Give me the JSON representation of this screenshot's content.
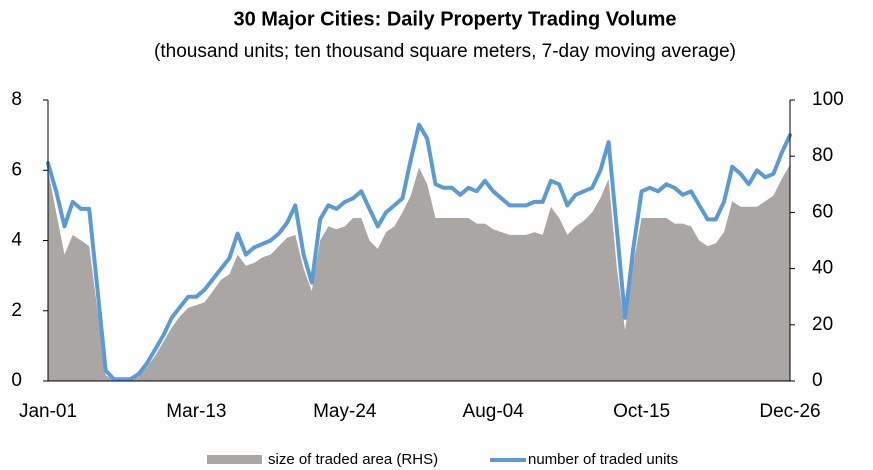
{
  "chart_data": {
    "type": "line",
    "title": "30 Major Cities: Daily Property Trading Volume",
    "subtitle": "(thousand units; ten thousand square meters, 7-day moving average)",
    "categories": [
      "Jan-01",
      null,
      null,
      null,
      null,
      null,
      null,
      null,
      null,
      null,
      null,
      null,
      null,
      null,
      null,
      null,
      null,
      null,
      "Mar-13",
      null,
      null,
      null,
      null,
      null,
      null,
      null,
      null,
      null,
      null,
      null,
      null,
      null,
      null,
      null,
      null,
      null,
      "May-24",
      null,
      null,
      null,
      null,
      null,
      null,
      null,
      null,
      null,
      null,
      null,
      null,
      null,
      null,
      null,
      null,
      null,
      "Aug-04",
      null,
      null,
      null,
      null,
      null,
      null,
      null,
      null,
      null,
      null,
      null,
      null,
      null,
      null,
      null,
      null,
      null,
      "Oct-15",
      null,
      null,
      null,
      null,
      null,
      null,
      null,
      null,
      null,
      null,
      null,
      null,
      null,
      null,
      null,
      null,
      null,
      "Dec-26"
    ],
    "series": [
      {
        "name": "size of traded area (RHS)",
        "type": "area",
        "axis": "y2",
        "color": "#aaa6a4",
        "values": [
          75,
          60,
          45,
          52,
          50,
          48,
          25,
          2,
          0.5,
          0.5,
          0.5,
          1.5,
          5,
          9,
          14,
          19,
          23,
          26,
          27,
          28,
          32,
          36,
          38,
          45,
          41,
          42,
          44,
          45,
          48,
          51,
          52,
          40,
          32,
          50,
          55,
          54,
          55,
          58,
          58,
          50,
          47,
          53,
          55,
          60,
          66,
          76,
          70,
          58,
          58,
          58,
          58,
          58,
          56,
          56,
          54,
          53,
          52,
          52,
          52,
          53,
          52,
          62,
          58,
          52,
          55,
          57,
          60,
          65,
          72,
          40,
          18,
          42,
          58,
          58,
          58,
          58,
          56,
          56,
          55,
          50,
          48,
          49,
          53,
          64,
          62,
          62,
          62,
          64,
          66,
          72,
          77
        ]
      },
      {
        "name": "number of traded units",
        "type": "line",
        "color": "#5b9bd5",
        "values": [
          6.2,
          5.4,
          4.4,
          5.1,
          4.9,
          4.9,
          2.6,
          0.3,
          0.05,
          0.05,
          0.05,
          0.2,
          0.5,
          0.9,
          1.3,
          1.8,
          2.1,
          2.4,
          2.4,
          2.6,
          2.9,
          3.2,
          3.5,
          4.2,
          3.6,
          3.8,
          3.9,
          4.0,
          4.2,
          4.5,
          5.0,
          3.6,
          2.8,
          4.6,
          5.0,
          4.9,
          5.1,
          5.2,
          5.4,
          4.9,
          4.4,
          4.8,
          5.0,
          5.2,
          6.3,
          7.3,
          6.9,
          5.6,
          5.5,
          5.5,
          5.3,
          5.5,
          5.4,
          5.7,
          5.4,
          5.2,
          5.0,
          5.0,
          5.0,
          5.1,
          5.1,
          5.7,
          5.6,
          5.0,
          5.3,
          5.4,
          5.5,
          6.0,
          6.8,
          4.3,
          1.8,
          3.8,
          5.4,
          5.5,
          5.4,
          5.6,
          5.5,
          5.3,
          5.4,
          5.0,
          4.6,
          4.6,
          5.1,
          6.1,
          5.9,
          5.6,
          6.0,
          5.8,
          5.9,
          6.5,
          7.0
        ]
      }
    ],
    "ylim": [
      0,
      8
    ],
    "yticks": [
      0,
      2,
      4,
      6,
      8
    ],
    "y2lim": [
      0,
      100
    ],
    "y2ticks": [
      0,
      20,
      40,
      60,
      80,
      100
    ]
  }
}
